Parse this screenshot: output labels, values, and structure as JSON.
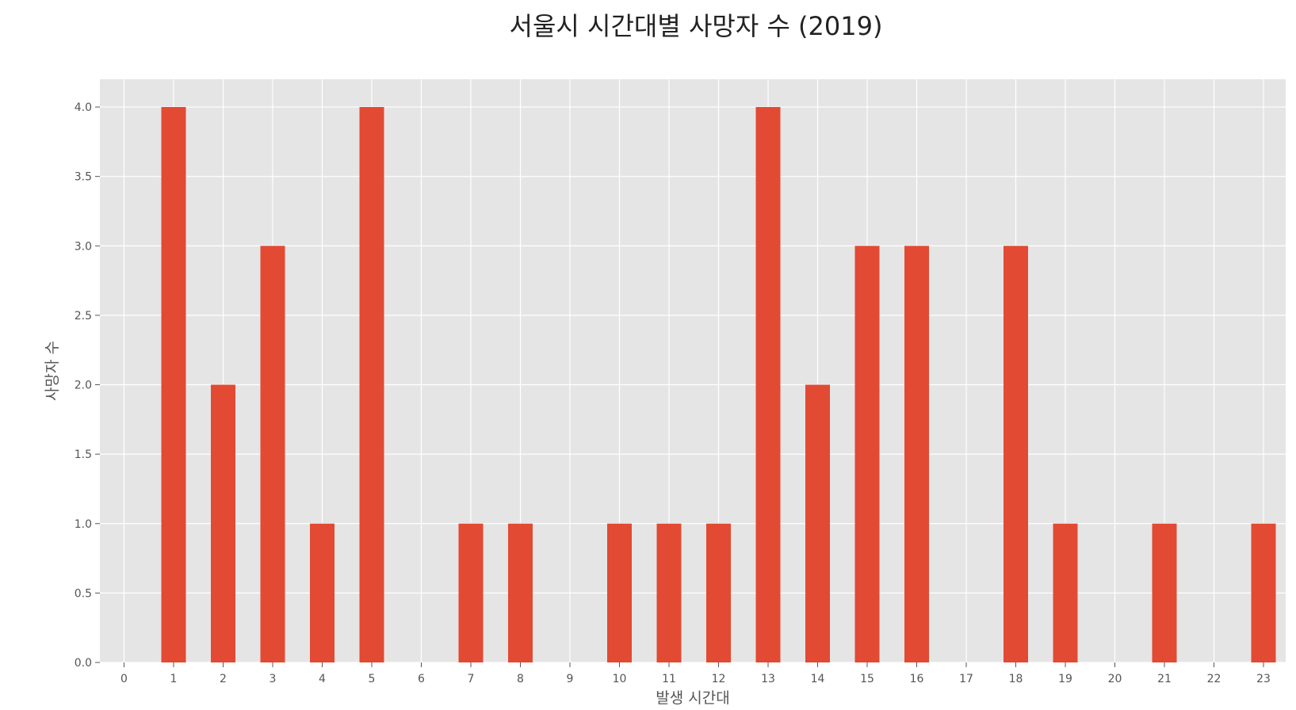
{
  "chart_data": {
    "type": "bar",
    "title": "서울시 시간대별 사망자 수 (2019)",
    "xlabel": "발생 시간대",
    "ylabel": "사망자 수",
    "categories": [
      "0",
      "1",
      "2",
      "3",
      "4",
      "5",
      "6",
      "7",
      "8",
      "9",
      "10",
      "11",
      "12",
      "13",
      "14",
      "15",
      "16",
      "17",
      "18",
      "19",
      "20",
      "21",
      "22",
      "23"
    ],
    "values": [
      0,
      4,
      2,
      3,
      1,
      4,
      0,
      1,
      1,
      0,
      1,
      1,
      1,
      4,
      2,
      3,
      3,
      0,
      3,
      1,
      0,
      1,
      0,
      1
    ],
    "ylim": [
      0,
      4.2
    ],
    "yticks": [
      "0.0",
      "0.5",
      "1.0",
      "1.5",
      "2.0",
      "2.5",
      "3.0",
      "3.5",
      "4.0"
    ],
    "grid": true,
    "colors": {
      "bar": "#E24A33",
      "plot_background": "#E5E5E5",
      "grid": "#FFFFFF"
    }
  }
}
